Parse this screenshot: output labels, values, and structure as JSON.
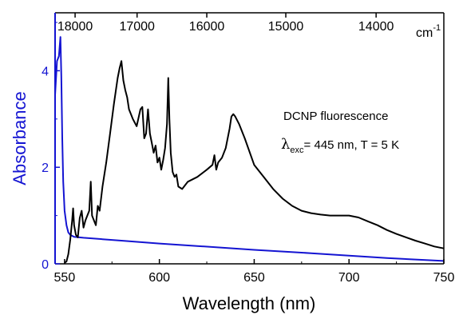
{
  "chart_data": {
    "type": "line",
    "xlabel": "Wavelength (nm)",
    "ylabel": "Absorbance",
    "xlim": [
      545,
      750
    ],
    "ylim": [
      0,
      5.2
    ],
    "x_ticks": [
      550,
      600,
      650,
      700,
      750
    ],
    "y_ticks": [
      0,
      2,
      4
    ],
    "top_axis": {
      "unit_label": "cm",
      "unit_exponent": "-1",
      "ticks_wavenumber": [
        18000,
        17000,
        16000,
        15000,
        14000
      ]
    },
    "annotation": {
      "line1": "DCNP fluorescence",
      "lambda_symbol": "λ",
      "lambda_subscript": "exc",
      "line2": "= 445 nm, T = 5 K"
    },
    "grid": false,
    "colors": {
      "absorbance": "#1414d2",
      "fluorescence": "#000000"
    },
    "series": [
      {
        "role": "absorbance",
        "x": [
          545,
          546,
          547,
          547.8,
          548.3,
          548.8,
          549.3,
          550,
          551,
          552,
          553,
          555,
          560,
          570,
          580,
          600,
          620,
          650,
          680,
          700,
          720,
          750
        ],
        "y": [
          3.5,
          4.2,
          4.3,
          4.7,
          3.9,
          2.6,
          1.7,
          1.1,
          0.8,
          0.65,
          0.6,
          0.56,
          0.54,
          0.51,
          0.48,
          0.42,
          0.37,
          0.29,
          0.22,
          0.17,
          0.12,
          0.06
        ]
      },
      {
        "role": "fluorescence",
        "x": [
          550,
          551,
          552,
          553,
          554,
          554.5,
          555,
          556,
          557,
          558,
          559,
          560,
          561,
          562,
          563,
          563.8,
          564.5,
          565.5,
          566.5,
          567.5,
          568.5,
          570,
          572,
          574,
          576,
          578,
          579,
          580,
          581,
          582,
          583,
          584,
          586,
          588,
          590,
          591,
          592,
          593,
          594,
          595,
          596,
          597,
          598,
          599,
          600,
          601,
          602,
          603,
          604,
          604.7,
          605.3,
          606,
          607,
          608,
          609,
          610,
          612,
          615,
          620,
          625,
          628,
          629,
          630,
          631,
          633,
          635,
          637,
          638,
          639,
          640,
          642,
          645,
          650,
          655,
          660,
          665,
          670,
          675,
          680,
          685,
          690,
          695,
          700,
          705,
          710,
          715,
          720,
          725,
          730,
          735,
          740,
          745,
          750
        ],
        "y": [
          0.02,
          0.05,
          0.2,
          0.5,
          0.9,
          1.15,
          0.8,
          0.6,
          0.55,
          0.95,
          1.1,
          0.75,
          0.9,
          1.0,
          1.1,
          1.7,
          1.0,
          0.9,
          0.8,
          1.2,
          1.1,
          1.6,
          2.1,
          2.7,
          3.3,
          3.85,
          4.05,
          4.2,
          3.8,
          3.6,
          3.45,
          3.2,
          3.0,
          2.85,
          3.2,
          3.25,
          2.6,
          2.7,
          3.2,
          2.7,
          2.5,
          2.3,
          2.45,
          2.1,
          2.2,
          1.95,
          2.15,
          2.4,
          2.9,
          3.85,
          3.0,
          2.3,
          1.9,
          1.8,
          1.85,
          1.6,
          1.55,
          1.7,
          1.8,
          1.95,
          2.05,
          2.25,
          1.95,
          2.1,
          2.2,
          2.4,
          2.8,
          3.05,
          3.1,
          3.05,
          2.9,
          2.6,
          2.05,
          1.8,
          1.55,
          1.35,
          1.2,
          1.1,
          1.05,
          1.02,
          1.0,
          1.0,
          1.0,
          0.96,
          0.88,
          0.8,
          0.7,
          0.62,
          0.55,
          0.48,
          0.42,
          0.36,
          0.32
        ]
      }
    ]
  }
}
